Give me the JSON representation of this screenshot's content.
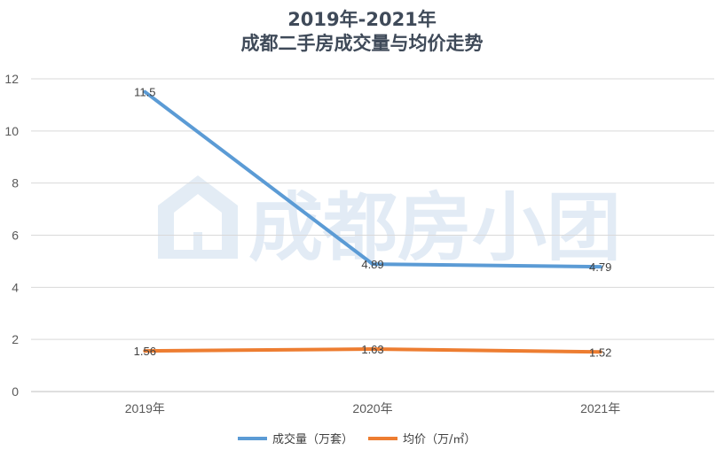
{
  "chart_data": {
    "type": "line",
    "title": [
      "2019年-2021年",
      "成都二手房成交量与均价走势"
    ],
    "categories": [
      "2019年",
      "2020年",
      "2021年"
    ],
    "ylim": [
      0,
      12
    ],
    "yticks": [
      0,
      2,
      4,
      6,
      8,
      10,
      12
    ],
    "grid": true,
    "legend_position": "bottom",
    "series": [
      {
        "name": "成交量（万套）",
        "values": [
          11.5,
          4.89,
          4.79
        ],
        "labels": [
          "11.5",
          "4.89",
          "4.79"
        ],
        "color": "#5b9bd5"
      },
      {
        "name": "均价（万/㎡）",
        "values": [
          1.56,
          1.63,
          1.52
        ],
        "labels": [
          "1.56",
          "1.63",
          "1.52"
        ],
        "color": "#ed7d31"
      }
    ]
  },
  "watermark": {
    "text": "成都房小团",
    "icon": "house-logo-icon"
  }
}
